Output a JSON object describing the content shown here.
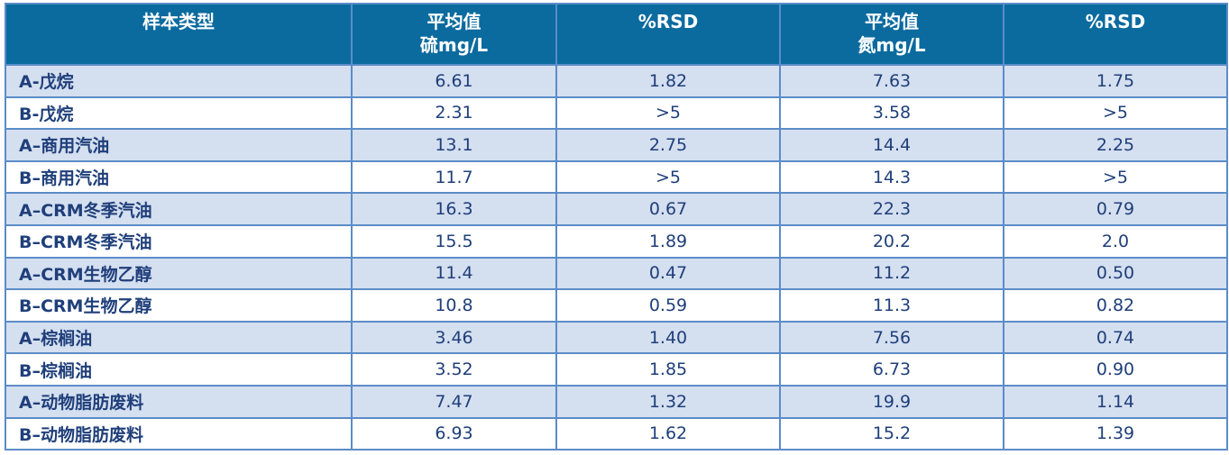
{
  "table": {
    "header": [
      [
        "样本类型"
      ],
      [
        "平均值",
        "硫mg/L"
      ],
      [
        "%RSD"
      ],
      [
        "平均值",
        "氮mg/L"
      ],
      [
        "%RSD"
      ]
    ],
    "rows": [
      [
        "A-戊烷",
        "6.61",
        "1.82",
        "7.63",
        "1.75"
      ],
      [
        "B-戊烷",
        "2.31",
        ">5",
        "3.58",
        ">5"
      ],
      [
        "A–商用汽油",
        "13.1",
        "2.75",
        "14.4",
        "2.25"
      ],
      [
        "B–商用汽油",
        "11.7",
        ">5",
        "14.3",
        ">5"
      ],
      [
        "A–CRM冬季汽油",
        "16.3",
        "0.67",
        "22.3",
        "0.79"
      ],
      [
        "B–CRM冬季汽油",
        "15.5",
        "1.89",
        "20.2",
        "2.0"
      ],
      [
        "A–CRM生物乙醇",
        "11.4",
        "0.47",
        "11.2",
        "0.50"
      ],
      [
        "B–CRM生物乙醇",
        "10.8",
        "0.59",
        "11.3",
        "0.82"
      ],
      [
        "A–棕榈油",
        "3.46",
        "1.40",
        "7.56",
        "0.74"
      ],
      [
        "B–棕榈油",
        "3.52",
        "1.85",
        "6.73",
        "0.90"
      ],
      [
        "A–动物脂肪废料",
        "7.47",
        "1.32",
        "19.9",
        "1.14"
      ],
      [
        "B–动物脂肪废料",
        "6.93",
        "1.62",
        "15.2",
        "1.39"
      ]
    ]
  }
}
